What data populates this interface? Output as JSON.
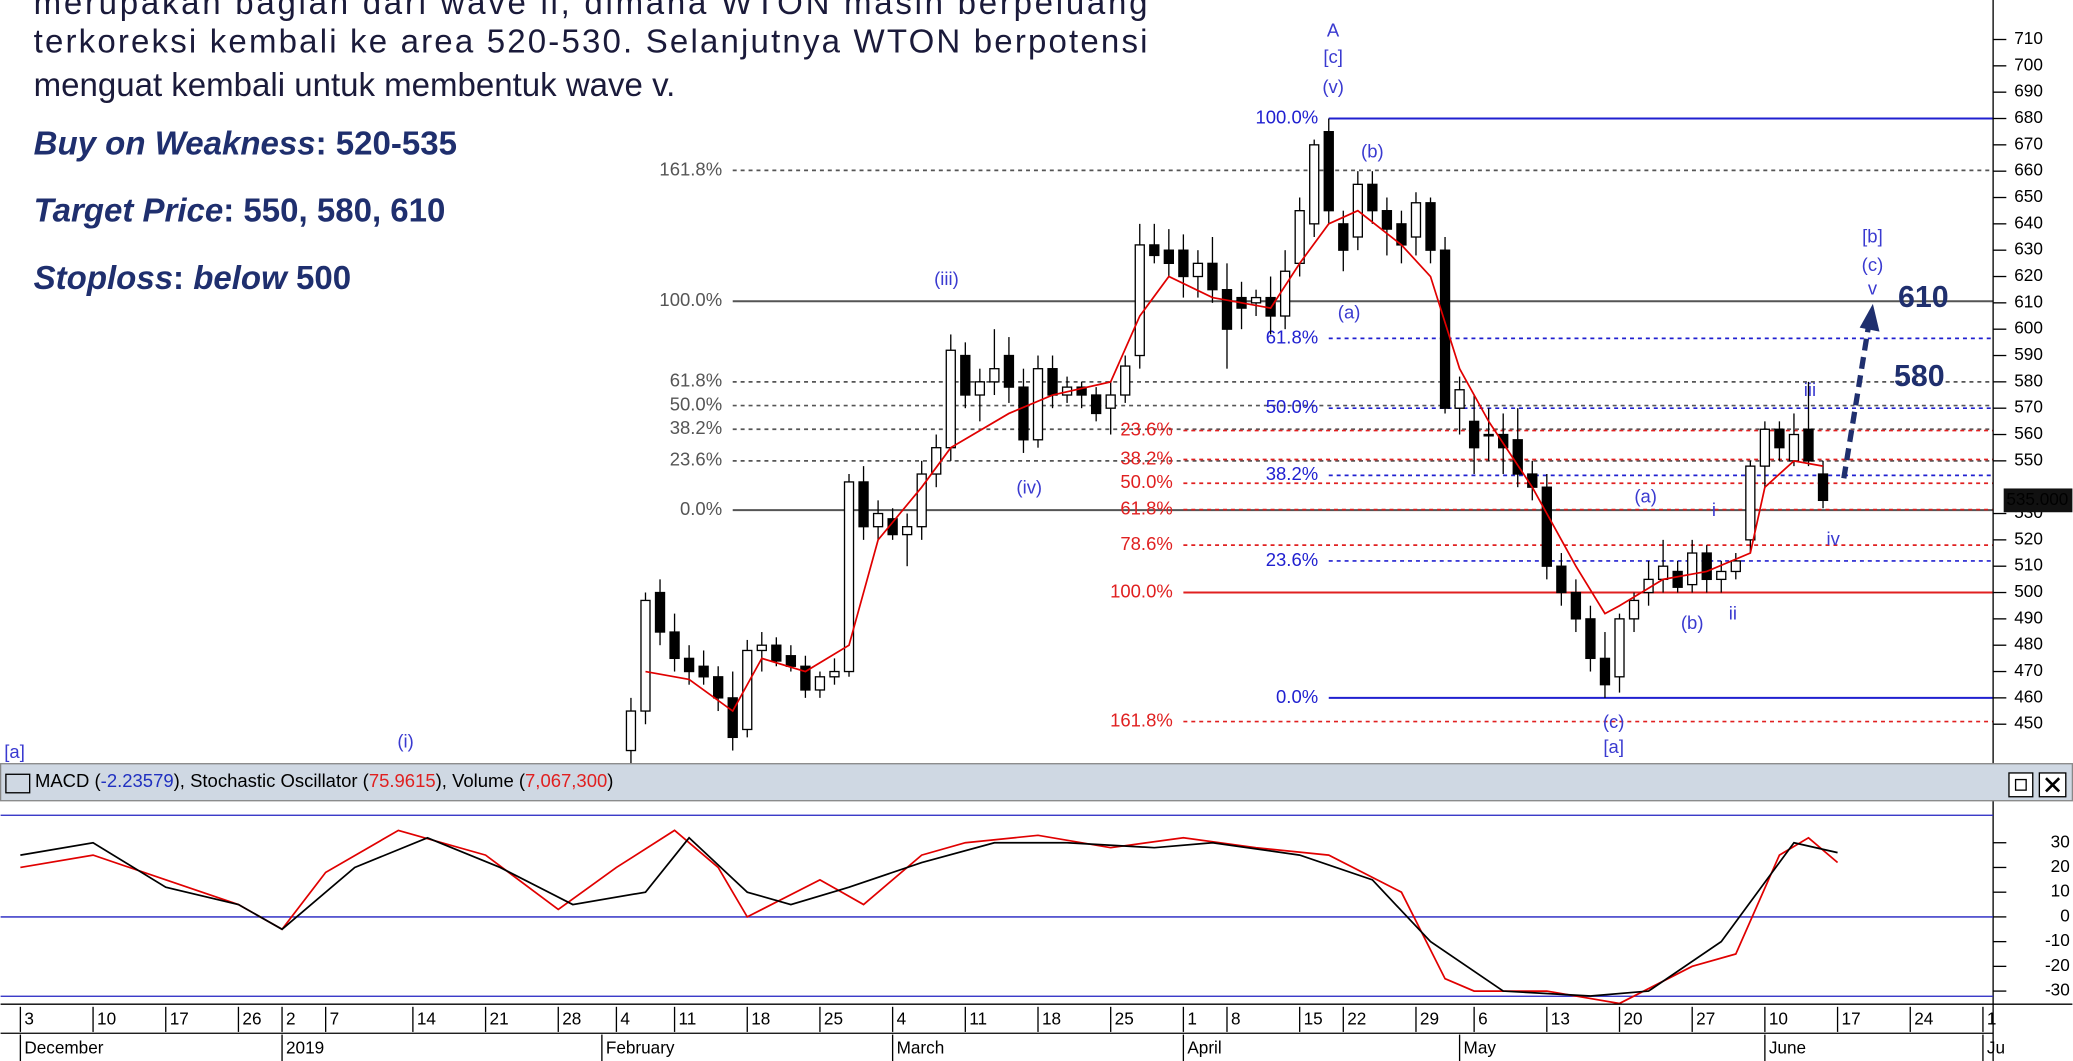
{
  "text_block": {
    "lines": [
      "merupakan bagian dari wave ii, dimana WTON masih berpeluang",
      "terkoreksi kembali ke area 520-530. Selanjutnya WTON berpotensi",
      "menguat kembali untuk membentuk wave v."
    ],
    "items": [
      [
        {
          "text": "Buy on Weakness",
          "italic": true
        },
        {
          "text": ": 520-535",
          "italic": false
        }
      ],
      [
        {
          "text": "Target Price",
          "italic": true
        },
        {
          "text": ": 550, 580, 610",
          "italic": false
        }
      ],
      [
        {
          "text": "Stoploss",
          "italic": true
        },
        {
          "text": ": ",
          "italic": false
        },
        {
          "text": "below",
          "italic": true
        },
        {
          "text": " 500",
          "italic": false
        }
      ]
    ]
  },
  "chart_data": {
    "type": "candlestick",
    "xlim": [
      -1.36,
      135.7
    ],
    "ylim": [
      435,
      725
    ],
    "yticks": [
      450,
      460,
      470,
      480,
      490,
      500,
      510,
      520,
      530,
      550,
      560,
      570,
      580,
      590,
      600,
      610,
      620,
      630,
      640,
      650,
      660,
      670,
      680,
      690,
      700,
      710
    ],
    "last": {
      "value": 535,
      "label": "535.000"
    },
    "x": [
      42,
      43,
      44,
      45,
      46,
      47,
      48,
      49,
      50,
      51,
      52,
      53,
      54,
      55,
      56,
      57,
      58,
      59,
      60,
      61,
      62,
      63,
      64,
      65,
      66,
      67,
      68,
      69,
      70,
      71,
      72,
      73,
      74,
      75,
      76,
      77,
      78,
      79,
      80,
      81,
      82,
      83,
      84,
      85,
      86,
      87,
      88,
      89,
      90,
      91,
      92,
      93,
      94,
      95,
      96,
      97,
      98,
      99,
      100,
      101,
      102,
      103,
      104,
      105,
      106,
      107,
      108,
      109,
      110,
      111,
      112,
      113,
      114,
      115,
      116,
      117,
      118,
      119,
      120,
      121,
      122,
      123,
      124
    ],
    "values": [
      [
        440,
        460,
        435,
        455
      ],
      [
        455,
        500,
        450,
        497
      ],
      [
        500,
        505,
        480,
        485
      ],
      [
        485,
        492,
        470,
        475
      ],
      [
        475,
        480,
        465,
        470
      ],
      [
        472,
        478,
        465,
        468
      ],
      [
        468,
        472,
        455,
        460
      ],
      [
        460,
        470,
        440,
        445
      ],
      [
        448,
        482,
        445,
        478
      ],
      [
        478,
        485,
        470,
        480
      ],
      [
        480,
        483,
        472,
        474
      ],
      [
        476,
        480,
        470,
        472
      ],
      [
        472,
        476,
        460,
        463
      ],
      [
        463,
        470,
        460,
        468
      ],
      [
        468,
        475,
        465,
        470
      ],
      [
        470,
        545,
        468,
        542
      ],
      [
        542,
        548,
        520,
        525
      ],
      [
        525,
        535,
        520,
        530
      ],
      [
        528,
        532,
        520,
        522
      ],
      [
        522,
        530,
        510,
        525
      ],
      [
        525,
        550,
        520,
        545
      ],
      [
        545,
        560,
        540,
        555
      ],
      [
        555,
        598,
        550,
        592
      ],
      [
        590,
        595,
        570,
        575
      ],
      [
        575,
        585,
        565,
        580
      ],
      [
        580,
        600,
        575,
        585
      ],
      [
        590,
        597,
        572,
        578
      ],
      [
        578,
        585,
        553,
        558
      ],
      [
        558,
        590,
        555,
        585
      ],
      [
        585,
        590,
        570,
        575
      ],
      [
        575,
        582,
        572,
        578
      ],
      [
        578,
        580,
        570,
        575
      ],
      [
        575,
        578,
        565,
        568
      ],
      [
        570,
        580,
        560,
        575
      ],
      [
        575,
        590,
        572,
        586
      ],
      [
        590,
        640,
        585,
        632
      ],
      [
        632,
        640,
        625,
        628
      ],
      [
        630,
        638,
        620,
        625
      ],
      [
        630,
        636,
        612,
        620
      ],
      [
        620,
        630,
        612,
        625
      ],
      [
        625,
        635,
        610,
        615
      ],
      [
        615,
        625,
        585,
        600
      ],
      [
        612,
        618,
        600,
        608
      ],
      [
        610,
        615,
        605,
        612
      ],
      [
        612,
        620,
        598,
        605
      ],
      [
        605,
        630,
        600,
        622
      ],
      [
        625,
        650,
        620,
        645
      ],
      [
        640,
        672,
        635,
        670
      ],
      [
        675,
        680,
        640,
        645
      ],
      [
        640,
        645,
        622,
        630
      ],
      [
        635,
        660,
        630,
        655
      ],
      [
        655,
        660,
        640,
        645
      ],
      [
        645,
        650,
        628,
        638
      ],
      [
        640,
        645,
        625,
        632
      ],
      [
        635,
        652,
        628,
        648
      ],
      [
        648,
        650,
        625,
        630
      ],
      [
        630,
        635,
        568,
        570
      ],
      [
        570,
        582,
        560,
        577
      ],
      [
        565,
        575,
        545,
        555
      ],
      [
        560,
        570,
        550,
        560
      ],
      [
        560,
        568,
        545,
        555
      ],
      [
        558,
        570,
        540,
        545
      ],
      [
        545,
        550,
        535,
        540
      ],
      [
        540,
        545,
        505,
        510
      ],
      [
        510,
        515,
        495,
        500
      ],
      [
        500,
        505,
        485,
        490
      ],
      [
        490,
        495,
        470,
        475
      ],
      [
        475,
        485,
        460,
        465
      ],
      [
        468,
        492,
        462,
        490
      ],
      [
        490,
        500,
        485,
        497
      ],
      [
        500,
        512,
        495,
        505
      ],
      [
        505,
        520,
        500,
        510
      ],
      [
        508,
        512,
        500,
        502
      ],
      [
        503,
        520,
        500,
        515
      ],
      [
        515,
        518,
        500,
        505
      ],
      [
        505,
        512,
        500,
        508
      ],
      [
        508,
        515,
        505,
        512
      ],
      [
        520,
        550,
        515,
        548
      ],
      [
        548,
        565,
        540,
        562
      ],
      [
        562,
        565,
        550,
        555
      ],
      [
        550,
        568,
        548,
        560
      ],
      [
        562,
        580,
        548,
        550
      ],
      [
        545,
        550,
        532,
        535
      ]
    ],
    "ma": {
      "color": "#e00000",
      "x": [
        43,
        46,
        49,
        51,
        54,
        57,
        59,
        62,
        64,
        68,
        71,
        75,
        77,
        79,
        82,
        86,
        88,
        90,
        92,
        95,
        97,
        99,
        101,
        104,
        107,
        109,
        110,
        113,
        116,
        119,
        120,
        122,
        124
      ],
      "values": [
        470,
        467,
        455,
        475,
        470,
        480,
        520,
        540,
        555,
        568,
        575,
        580,
        605,
        620,
        612,
        608,
        625,
        640,
        645,
        632,
        620,
        585,
        565,
        540,
        510,
        492,
        495,
        505,
        508,
        515,
        540,
        550,
        548
      ]
    },
    "fib_sets": [
      {
        "color": "#555555",
        "from": 49,
        "levels": [
          {
            "label": "161.8%",
            "price": 660.3,
            "dash": true
          },
          {
            "label": "100.0%",
            "price": 610.6,
            "dash": false
          },
          {
            "label": "61.8%",
            "price": 580,
            "dash": true
          },
          {
            "label": "50.0%",
            "price": 571,
            "dash": true
          },
          {
            "label": "38.2%",
            "price": 562,
            "dash": true
          },
          {
            "label": "23.6%",
            "price": 550,
            "dash": true
          },
          {
            "label": "0.0%",
            "price": 531.3,
            "dash": false
          }
        ]
      },
      {
        "color": "#e02020",
        "from": 80,
        "levels": [
          {
            "label": "23.6%",
            "price": 561.5,
            "dash": true
          },
          {
            "label": "38.2%",
            "price": 550.5,
            "dash": true
          },
          {
            "label": "50.0%",
            "price": 541.5,
            "dash": true
          },
          {
            "label": "61.8%",
            "price": 531.5,
            "dash": true
          },
          {
            "label": "78.6%",
            "price": 518,
            "dash": true
          },
          {
            "label": "100.0%",
            "price": 500,
            "dash": false
          },
          {
            "label": "161.8%",
            "price": 451,
            "dash": true
          }
        ]
      },
      {
        "color": "#2020d0",
        "from": 90,
        "levels": [
          {
            "label": "100.0%",
            "price": 680,
            "dash": false
          },
          {
            "label": "61.8%",
            "price": 596.5,
            "dash": true
          },
          {
            "label": "50.0%",
            "price": 570,
            "dash": true
          },
          {
            "label": "38.2%",
            "price": 544.5,
            "dash": true
          },
          {
            "label": "23.6%",
            "price": 512,
            "dash": true
          },
          {
            "label": "0.0%",
            "price": 460,
            "dash": false
          }
        ]
      }
    ],
    "waves": [
      {
        "text": "A",
        "x": 90.3,
        "price": 713
      },
      {
        "text": "[c]",
        "x": 90.3,
        "price": 703
      },
      {
        "text": "(v)",
        "x": 90.3,
        "price": 691.5
      },
      {
        "text": "(b)",
        "x": 93,
        "price": 667
      },
      {
        "text": "(iii)",
        "x": 63.7,
        "price": 618.7
      },
      {
        "text": "(a)",
        "x": 91.4,
        "price": 606
      },
      {
        "text": "(iv)",
        "x": 69.4,
        "price": 539.4
      },
      {
        "text": "(a)",
        "x": 111.8,
        "price": 536
      },
      {
        "text": "i",
        "x": 116.5,
        "price": 531
      },
      {
        "text": "(b)",
        "x": 115,
        "price": 488
      },
      {
        "text": "ii",
        "x": 117.8,
        "price": 491.7
      },
      {
        "text": "iii",
        "x": 123.1,
        "price": 576.5
      },
      {
        "text": "iv",
        "x": 124.7,
        "price": 520
      },
      {
        "text": "(c)",
        "x": 109.6,
        "price": 450.5
      },
      {
        "text": "[a]",
        "x": 109.6,
        "price": 441
      },
      {
        "text": "[b]",
        "x": 127.4,
        "price": 634.7
      },
      {
        "text": "(c)",
        "x": 127.4,
        "price": 624
      },
      {
        "text": "v",
        "x": 127.4,
        "price": 615
      },
      {
        "text": "(i)",
        "x": 26.5,
        "price": 443
      },
      {
        "text": "[a]",
        "x": -0.4,
        "price": 439
      }
    ],
    "targets": [
      610,
      580
    ],
    "xticks": [
      {
        "value": 0,
        "label": "3"
      },
      {
        "value": 5,
        "label": "10"
      },
      {
        "value": 10,
        "label": "17"
      },
      {
        "value": 15,
        "label": "26"
      },
      {
        "value": 18,
        "label": "2"
      },
      {
        "value": 21,
        "label": "7"
      },
      {
        "value": 27,
        "label": "14"
      },
      {
        "value": 32,
        "label": "21"
      },
      {
        "value": 37,
        "label": "28"
      },
      {
        "value": 41,
        "label": "4"
      },
      {
        "value": 45,
        "label": "11"
      },
      {
        "value": 50,
        "label": "18"
      },
      {
        "value": 55,
        "label": "25"
      },
      {
        "value": 60,
        "label": "4"
      },
      {
        "value": 65,
        "label": "11"
      },
      {
        "value": 70,
        "label": "18"
      },
      {
        "value": 75,
        "label": "25"
      },
      {
        "value": 80,
        "label": "1"
      },
      {
        "value": 83,
        "label": "8"
      },
      {
        "value": 88,
        "label": "15"
      },
      {
        "value": 91,
        "label": "22"
      },
      {
        "value": 96,
        "label": "29"
      },
      {
        "value": 100,
        "label": "6"
      },
      {
        "value": 105,
        "label": "13"
      },
      {
        "value": 110,
        "label": "20"
      },
      {
        "value": 115,
        "label": "27"
      },
      {
        "value": 120,
        "label": "10"
      },
      {
        "value": 125,
        "label": "17"
      },
      {
        "value": 130,
        "label": "24"
      },
      {
        "value": 135,
        "label": "1"
      }
    ],
    "months": [
      {
        "value": 0,
        "label": "December"
      },
      {
        "value": 18,
        "label": "2019"
      },
      {
        "value": 40,
        "label": "February"
      },
      {
        "value": 60,
        "label": "March"
      },
      {
        "value": 80,
        "label": "April"
      },
      {
        "value": 99,
        "label": "May"
      },
      {
        "value": 120,
        "label": "June"
      },
      {
        "value": 135,
        "label": "Ju"
      }
    ],
    "indicator": {
      "header": [
        {
          "text": "MACD (",
          "color": "#000000"
        },
        {
          "text": "-2.23579",
          "color": "#2030c0"
        },
        {
          "text": "), Stochastic Oscillator (",
          "color": "#000000"
        },
        {
          "text": "75.9615",
          "color": "#e02020"
        },
        {
          "text": "), Volume (",
          "color": "#000000"
        },
        {
          "text": "7,067,300",
          "color": "#e02020"
        },
        {
          "text": ")",
          "color": "#000000"
        }
      ],
      "ylim": [
        -35.3,
        47
      ],
      "yticks": [
        30,
        20,
        10,
        0,
        -10,
        -20,
        -30
      ],
      "series": [
        {
          "color": "#e00000",
          "x": [
            0,
            5,
            10,
            15,
            18,
            21,
            26,
            32,
            37,
            41,
            45,
            48,
            50,
            55,
            58,
            62,
            65,
            70,
            75,
            80,
            85,
            90,
            95,
            98,
            100,
            105,
            110,
            115,
            118,
            121,
            123,
            125
          ],
          "values": [
            20,
            25,
            15,
            5,
            -5,
            18,
            35,
            25,
            3,
            20,
            35,
            20,
            0,
            15,
            5,
            25,
            30,
            33,
            28,
            32,
            28,
            25,
            10,
            -25,
            -30,
            -30,
            -35,
            -20,
            -15,
            25,
            32,
            22
          ]
        },
        {
          "color": "#000000",
          "x": [
            0,
            5,
            10,
            15,
            18,
            23,
            28,
            33,
            38,
            43,
            46,
            50,
            53,
            57,
            62,
            67,
            72,
            78,
            82,
            88,
            93,
            97,
            102,
            108,
            112,
            117,
            122,
            125
          ],
          "values": [
            25,
            30,
            12,
            5,
            -5,
            20,
            32,
            20,
            5,
            10,
            32,
            10,
            5,
            12,
            22,
            30,
            30,
            28,
            30,
            25,
            15,
            -10,
            -30,
            -32,
            -30,
            -10,
            30,
            26
          ]
        }
      ]
    }
  }
}
